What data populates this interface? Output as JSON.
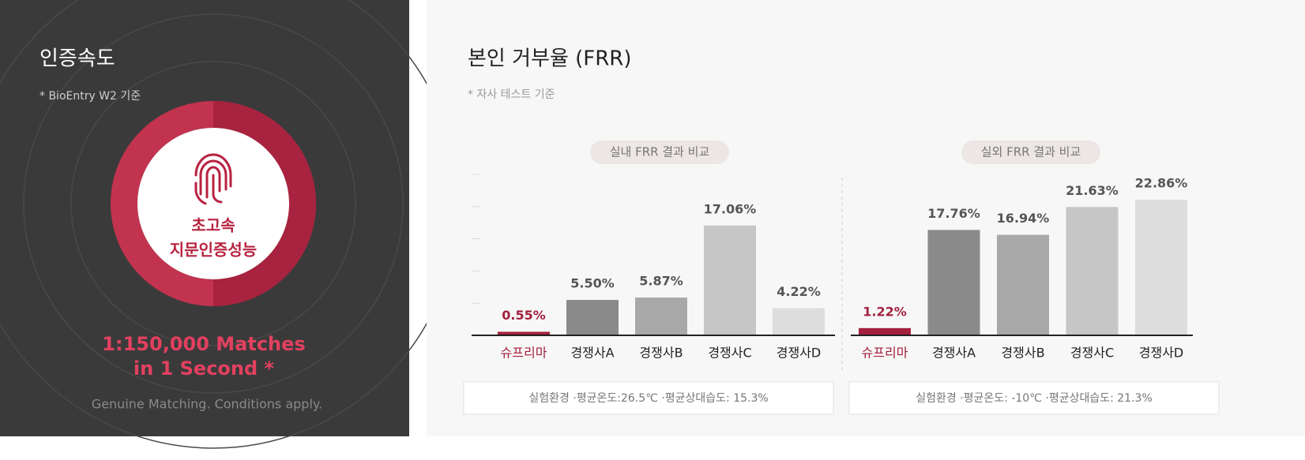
{
  "speed_panel": {
    "title": "인증속도",
    "subtitle": "* BioEntry W2 기준",
    "badge_line1": "초고속",
    "badge_line2": "지문인증성능",
    "headline_line1": "1:150,000 Matches",
    "headline_line2": "in 1 Second *",
    "footnote": "Genuine Matching. Conditions apply."
  },
  "frr_panel": {
    "title": "본인 거부율 (FRR)",
    "subtitle": "* 자사 테스트 기준"
  },
  "chart_data": [
    {
      "type": "bar",
      "title": "실내 FRR 결과 비교",
      "categories": [
        "슈프리마",
        "경쟁사A",
        "경쟁사B",
        "경쟁사C",
        "경쟁사D"
      ],
      "values": [
        0.55,
        5.5,
        5.87,
        17.06,
        4.22
      ],
      "value_labels": [
        "0.55%",
        "5.50%",
        "5.87%",
        "17.06%",
        "4.22%"
      ],
      "colors": [
        "#a3213e",
        "#8a8a8a",
        "#a8a8a8",
        "#c6c6c6",
        "#dddddd"
      ],
      "ylim": [
        0,
        25
      ],
      "yticks": [
        0,
        5,
        10,
        15,
        20,
        25
      ],
      "note": "실험환경 ·평균온도:26.5℃ ·평균상대습도: 15.3%"
    },
    {
      "type": "bar",
      "title": "실외 FRR 결과 비교",
      "categories": [
        "슈프리마",
        "경쟁사A",
        "경쟁사B",
        "경쟁사C",
        "경쟁사D"
      ],
      "values": [
        1.22,
        17.76,
        16.94,
        21.63,
        22.86
      ],
      "value_labels": [
        "1.22%",
        "17.76%",
        "16.94%",
        "21.63%",
        "22.86%"
      ],
      "colors": [
        "#a3213e",
        "#8a8a8a",
        "#a8a8a8",
        "#c6c6c6",
        "#dddddd"
      ],
      "ylim": [
        0,
        25
      ],
      "note": "실험환경 ·평균온도: -10℃ ·평균상대습도: 21.3%"
    }
  ]
}
